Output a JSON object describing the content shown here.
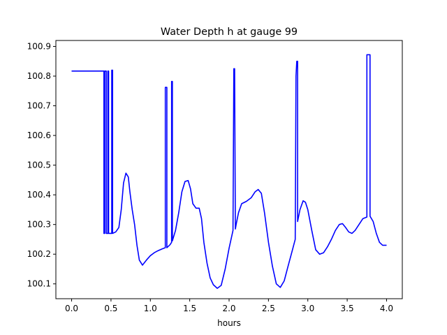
{
  "chart_data": {
    "type": "line",
    "title": "Water Depth h at gauge 99",
    "xlabel": "hours",
    "ylabel": "",
    "xlim": [
      -0.2,
      4.2
    ],
    "ylim": [
      100.05,
      100.92
    ],
    "xticks": [
      0.0,
      0.5,
      1.0,
      1.5,
      2.0,
      2.5,
      3.0,
      3.5,
      4.0
    ],
    "xtick_labels": [
      "0.0",
      "0.5",
      "1.0",
      "1.5",
      "2.0",
      "2.5",
      "3.0",
      "3.5",
      "4.0"
    ],
    "yticks": [
      100.1,
      100.2,
      100.3,
      100.4,
      100.5,
      100.6,
      100.7,
      100.8,
      100.9
    ],
    "ytick_labels": [
      "100.1",
      "100.2",
      "100.3",
      "100.4",
      "100.5",
      "100.6",
      "100.7",
      "100.8",
      "100.9"
    ],
    "grid": false,
    "legend": "none",
    "series": [
      {
        "color": "#0000ff",
        "x": [
          0.0,
          0.41,
          0.41,
          0.42,
          0.42,
          0.44,
          0.44,
          0.46,
          0.46,
          0.47,
          0.47,
          0.51,
          0.51,
          0.52,
          0.52,
          0.56,
          0.6,
          0.63,
          0.66,
          0.69,
          0.72,
          0.74,
          0.77,
          0.8,
          0.83,
          0.86,
          0.9,
          0.95,
          1.0,
          1.05,
          1.1,
          1.15,
          1.19,
          1.19,
          1.21,
          1.21,
          1.25,
          1.27,
          1.27,
          1.28,
          1.28,
          1.32,
          1.36,
          1.4,
          1.44,
          1.48,
          1.51,
          1.54,
          1.58,
          1.62,
          1.65,
          1.68,
          1.72,
          1.76,
          1.8,
          1.85,
          1.9,
          1.95,
          2.0,
          2.05,
          2.06,
          2.07,
          2.08,
          2.09,
          2.12,
          2.16,
          2.22,
          2.28,
          2.33,
          2.37,
          2.41,
          2.45,
          2.5,
          2.55,
          2.6,
          2.65,
          2.7,
          2.75,
          2.8,
          2.84,
          2.85,
          2.86,
          2.87,
          2.87,
          2.9,
          2.94,
          2.97,
          3.0,
          3.05,
          3.1,
          3.15,
          3.2,
          3.25,
          3.3,
          3.35,
          3.4,
          3.44,
          3.48,
          3.52,
          3.56,
          3.6,
          3.65,
          3.7,
          3.75,
          3.75,
          3.79,
          3.79,
          3.83,
          3.87,
          3.91,
          3.95,
          4.0
        ],
        "y": [
          100.817,
          100.817,
          100.27,
          100.27,
          100.817,
          100.817,
          100.27,
          100.27,
          100.817,
          100.817,
          100.27,
          100.27,
          100.82,
          100.82,
          100.27,
          100.275,
          100.29,
          100.35,
          100.44,
          100.473,
          100.46,
          100.41,
          100.35,
          100.3,
          100.23,
          100.18,
          100.163,
          100.18,
          100.195,
          100.205,
          100.212,
          100.218,
          100.222,
          100.762,
          100.762,
          100.222,
          100.232,
          100.24,
          100.782,
          100.782,
          100.245,
          100.28,
          100.34,
          100.41,
          100.445,
          100.448,
          100.42,
          100.37,
          100.355,
          100.355,
          100.32,
          100.24,
          100.17,
          100.12,
          100.097,
          100.085,
          100.095,
          100.15,
          100.22,
          100.28,
          100.825,
          100.825,
          100.285,
          100.3,
          100.34,
          100.37,
          100.378,
          100.39,
          100.41,
          100.418,
          100.405,
          100.34,
          100.24,
          100.16,
          100.1,
          100.088,
          100.11,
          100.16,
          100.21,
          100.25,
          100.8,
          100.85,
          100.85,
          100.31,
          100.35,
          100.38,
          100.375,
          100.35,
          100.28,
          100.215,
          100.2,
          100.205,
          100.225,
          100.25,
          100.28,
          100.3,
          100.303,
          100.29,
          100.275,
          100.27,
          100.28,
          100.3,
          100.32,
          100.325,
          100.872,
          100.872,
          100.328,
          100.31,
          100.27,
          100.24,
          100.23,
          100.23
        ]
      }
    ]
  }
}
